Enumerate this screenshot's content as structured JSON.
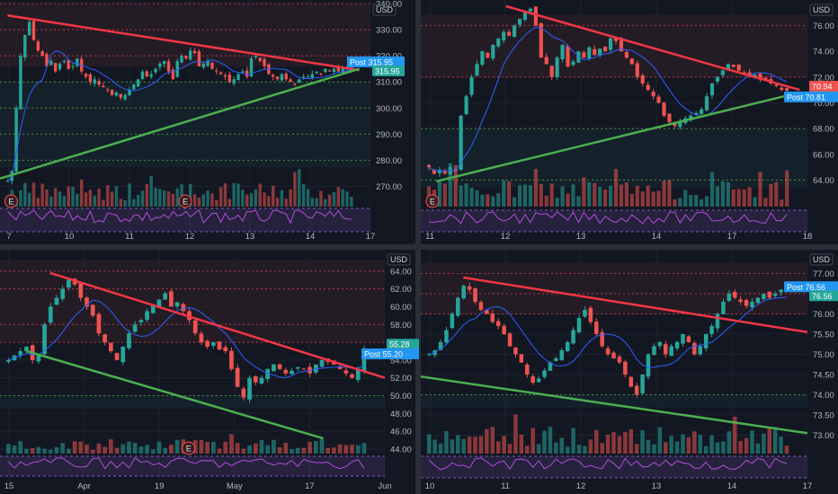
{
  "colors": {
    "background": "#131722",
    "divider": "#2a2e39",
    "grid": "#1e222d",
    "axis_text": "#b2b5be",
    "bull": "#26a69a",
    "bear": "#ef5350",
    "resistance_line": "#f23645",
    "support_line": "#4caf50",
    "sma": "#2962ff",
    "rsi": "#b14fd6",
    "rsi_band": "#7e57c2",
    "post_badge": "#2196f3",
    "red_dotted": "#f23645",
    "green_dotted": "#4caf50"
  },
  "chart_data": [
    {
      "type": "candlestick",
      "currency": "USD",
      "post_label": "Post",
      "y_ticks": [
        340,
        330,
        320,
        310,
        300,
        290,
        280,
        270
      ],
      "ylim": [
        265,
        340
      ],
      "x_ticks": [
        "7",
        "10",
        "11",
        "12",
        "13",
        "14",
        "17"
      ],
      "price_badges": [
        {
          "label": "Post",
          "value": 315.95,
          "color": "post"
        },
        {
          "label": "",
          "value": 315.95,
          "color": "bull"
        }
      ],
      "resistance_line": {
        "from": [
          0.02,
          335.5
        ],
        "to": [
          0.97,
          314.5
        ]
      },
      "support_line": {
        "from": [
          0.0,
          273.0
        ],
        "to": [
          0.97,
          315.0
        ]
      },
      "red_levels": [
        340.0,
        330.0,
        320.0
      ],
      "green_levels": [
        310.0,
        300.0,
        290.0,
        280.0
      ],
      "earnings_markers": [
        0.03,
        0.5
      ],
      "close_path": [
        272,
        276,
        300,
        320,
        328,
        333,
        326,
        322,
        320,
        316,
        318,
        314,
        317,
        318,
        315,
        316,
        319,
        314,
        312,
        310,
        311,
        309,
        308,
        307,
        305,
        306,
        304,
        305,
        307,
        309,
        311,
        314,
        312,
        313,
        315,
        317,
        318,
        314,
        311,
        318,
        320,
        319,
        322,
        321,
        316,
        317,
        318,
        315,
        314,
        313,
        312,
        310,
        311,
        313,
        314,
        312,
        319,
        320,
        318,
        316,
        313,
        312,
        311,
        313,
        311,
        310,
        309,
        311,
        312,
        312,
        313,
        314,
        313,
        315,
        314,
        315,
        314,
        315,
        315,
        316
      ]
    },
    {
      "type": "candlestick",
      "currency": "USD",
      "post_label": "Post",
      "y_ticks": [
        76,
        74,
        72,
        70,
        68,
        66,
        64
      ],
      "ylim": [
        62.5,
        77.7
      ],
      "x_ticks": [
        "11",
        "12",
        "13",
        "14",
        "17",
        "18"
      ],
      "price_badges": [
        {
          "label": "",
          "value": 70.94,
          "color": "bear"
        },
        {
          "label": "Post",
          "value": 70.81,
          "color": "post"
        }
      ],
      "resistance_line": {
        "from": [
          0.22,
          77.5
        ],
        "to": [
          0.98,
          71.0
        ]
      },
      "support_line": {
        "from": [
          0.04,
          63.9
        ],
        "to": [
          0.98,
          70.8
        ]
      },
      "red_levels": [
        76.0,
        72.0
      ],
      "green_levels": [
        68.0,
        64.0
      ],
      "earnings_markers": [
        0.03
      ],
      "close_path": [
        65,
        64.5,
        64.8,
        64.5,
        65,
        64.7,
        69,
        70.5,
        72,
        73,
        74,
        73.5,
        74.5,
        75,
        75.5,
        75.2,
        76,
        76.5,
        77,
        77.3,
        76,
        73.5,
        73,
        72,
        73.5,
        74.5,
        72.8,
        73.2,
        74,
        73.5,
        74.3,
        73.7,
        74.2,
        74,
        75,
        74.8,
        74,
        73.5,
        73,
        72,
        71.5,
        71,
        70.5,
        70,
        69,
        68.5,
        68.2,
        68.5,
        68.8,
        69,
        69.2,
        69.5,
        70.5,
        71.5,
        72,
        72.5,
        73,
        72.8,
        72.5,
        72.3,
        72,
        72.2,
        71.8,
        71.7,
        71.5,
        71.3,
        71,
        70.94
      ]
    },
    {
      "type": "candlestick",
      "currency": "USD",
      "post_label": "Post",
      "y_ticks": [
        64,
        62,
        60,
        58,
        56,
        54,
        52,
        50,
        48,
        46,
        44
      ],
      "ylim": [
        44,
        66
      ],
      "x_ticks": [
        "15",
        "Apr",
        "19",
        "May",
        "17",
        "Jun"
      ],
      "price_badges": [
        {
          "label": "",
          "value": 55.28,
          "color": "bull"
        },
        {
          "label": "Post",
          "value": 55.2,
          "color": "post"
        }
      ],
      "resistance_line": {
        "from": [
          0.13,
          63.8
        ],
        "to": [
          1.0,
          52.0
        ]
      },
      "support_line": {
        "from": [
          0.07,
          55.0
        ],
        "to": [
          0.84,
          45.2
        ]
      },
      "red_levels": [
        64.0,
        62.0,
        58.0,
        56.0
      ],
      "green_levels": [
        50.0
      ],
      "earnings_markers": [
        0.49
      ],
      "close_path": [
        54,
        54.5,
        55,
        55.5,
        54,
        54.5,
        58,
        60,
        61,
        62,
        63,
        62.5,
        61,
        60,
        59,
        57,
        56,
        55,
        54,
        55.5,
        57,
        58,
        58.5,
        59.5,
        60.2,
        60.8,
        61.5,
        60,
        60.5,
        59.5,
        58.5,
        57,
        56,
        55.5,
        56,
        55.2,
        55,
        53,
        51,
        49.8,
        52,
        51.5,
        52,
        53,
        53.5,
        53,
        52.5,
        52.8,
        53.2,
        53,
        52.5,
        53.5,
        54,
        53.8,
        53.5,
        53,
        52.5,
        52,
        53,
        55.28
      ]
    },
    {
      "type": "candlestick",
      "currency": "USD",
      "post_label": "Post",
      "y_ticks": [
        77.0,
        76.5,
        76.0,
        75.5,
        75.0,
        74.5,
        74.0,
        73.5,
        73.0
      ],
      "ylim": [
        72.7,
        77.5
      ],
      "x_ticks": [
        "10",
        "11",
        "12",
        "13",
        "14",
        "17"
      ],
      "price_badges": [
        {
          "label": "Post",
          "value": 76.56,
          "color": "post"
        },
        {
          "label": "",
          "value": 76.56,
          "color": "bull"
        }
      ],
      "resistance_line": {
        "from": [
          0.11,
          76.9
        ],
        "to": [
          1.0,
          75.55
        ]
      },
      "support_line": {
        "from": [
          0.0,
          74.45
        ],
        "to": [
          1.0,
          73.05
        ]
      },
      "red_levels": [
        77.0,
        76.5,
        76.0
      ],
      "green_levels": [
        74.0
      ],
      "earnings_markers": [],
      "close_path": [
        75,
        75.1,
        75.3,
        75.6,
        76,
        76.4,
        76.7,
        76.6,
        76.3,
        76.1,
        76.0,
        75.8,
        75.7,
        75.5,
        75.2,
        75.0,
        74.8,
        74.5,
        74.3,
        74.4,
        74.6,
        74.8,
        74.9,
        75.1,
        75.3,
        75.6,
        75.9,
        76.1,
        75.8,
        75.5,
        75.2,
        75.0,
        74.9,
        74.8,
        74.5,
        74.2,
        74.0,
        74.5,
        75.0,
        75.2,
        75.3,
        75.0,
        75.2,
        75.3,
        75.5,
        75.3,
        75.0,
        75.2,
        75.5,
        75.7,
        76.0,
        76.3,
        76.5,
        76.4,
        76.3,
        76.2,
        76.3,
        76.4,
        76.5,
        76.4,
        76.5,
        76.6,
        76.56
      ]
    }
  ]
}
